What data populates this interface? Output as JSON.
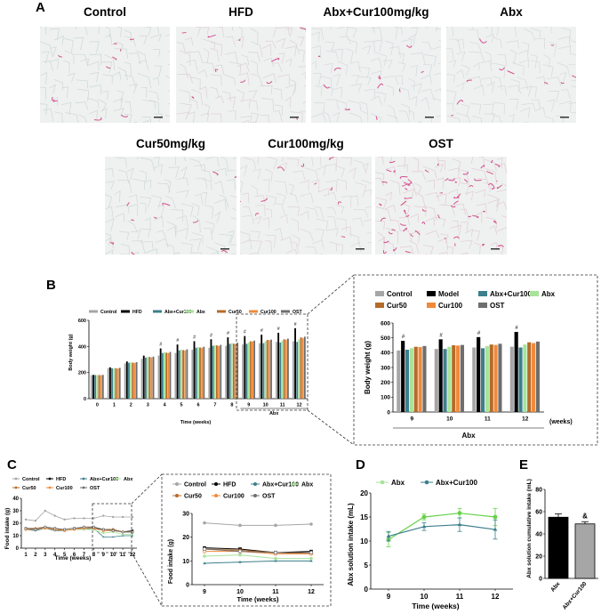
{
  "panels": {
    "A": "A",
    "B": "B",
    "C": "C",
    "D": "D",
    "E": "E"
  },
  "histology": [
    {
      "label": "Control",
      "tint": "#ccd8d6"
    },
    {
      "label": "HFD",
      "tint": "#ddd1d6"
    },
    {
      "label": "Abx+Cur100mg/kg",
      "tint": "#d4d9e0"
    },
    {
      "label": "Abx",
      "tint": "#d5dad8"
    },
    {
      "label": "Cur50mg/kg",
      "tint": "#cfd9d7"
    },
    {
      "label": "Cur100mg/kg",
      "tint": "#dfd4d9"
    },
    {
      "label": "OST",
      "tint": "#e3ccd6"
    }
  ],
  "colors": {
    "Control": "#a6a6a6",
    "HFD": "#000000",
    "Model": "#000000",
    "Abx+Cur100": "#3d7f8c",
    "Abx": "#a8e39a",
    "Cur50": "#b56b2a",
    "Cur100": "#f08a3a",
    "OST": "#6e6e6e",
    "Abx_line": "#66d24a"
  },
  "chart_data": [
    {
      "id": "B-main",
      "type": "bar",
      "xlabel": "Time (weeks)",
      "ylabel": "Body weight (g)",
      "ylim": [
        0,
        600
      ],
      "yticks": [
        "0",
        "200",
        "400",
        "600"
      ],
      "categories": [
        "0",
        "1",
        "2",
        "3",
        "4",
        "5",
        "6",
        "7",
        "8",
        "9",
        "10",
        "11",
        "12"
      ],
      "legend": [
        "Control",
        "HFD",
        "Abx+Cur100",
        "Abx",
        "Cur50",
        "Cur100",
        "OST"
      ],
      "bracket_label": "Abx",
      "series": [
        {
          "name": "Control",
          "values": [
            180,
            235,
            270,
            305,
            330,
            350,
            375,
            390,
            405,
            415,
            425,
            435,
            440
          ]
        },
        {
          "name": "HFD",
          "values": [
            182,
            240,
            285,
            330,
            385,
            415,
            440,
            455,
            470,
            480,
            490,
            505,
            540
          ]
        },
        {
          "name": "Abx+Cur100",
          "values": [
            181,
            232,
            275,
            315,
            350,
            370,
            390,
            405,
            420,
            420,
            425,
            430,
            435
          ]
        },
        {
          "name": "Abx",
          "values": [
            180,
            234,
            278,
            318,
            355,
            375,
            395,
            410,
            425,
            430,
            440,
            445,
            455
          ]
        },
        {
          "name": "Cur50",
          "values": [
            181,
            233,
            276,
            320,
            352,
            372,
            392,
            408,
            422,
            440,
            450,
            455,
            470
          ]
        },
        {
          "name": "Cur100",
          "values": [
            180,
            231,
            274,
            316,
            350,
            370,
            390,
            404,
            418,
            438,
            448,
            452,
            465
          ]
        },
        {
          "name": "OST",
          "values": [
            182,
            236,
            280,
            322,
            358,
            378,
            398,
            412,
            428,
            445,
            452,
            460,
            475
          ]
        }
      ]
    },
    {
      "id": "B-inset",
      "type": "bar",
      "xlabel": "(weeks)",
      "ylabel": "Body weight (g)",
      "ylim": [
        0,
        600
      ],
      "yticks": [
        "0",
        "100",
        "200",
        "300",
        "400",
        "500",
        "600"
      ],
      "categories": [
        "9",
        "10",
        "11",
        "12"
      ],
      "legend": [
        "Control",
        "Model",
        "Abx+Cur100",
        "Abx",
        "Cur50",
        "Cur100",
        "OST"
      ],
      "bracket_label": "Abx",
      "series": [
        {
          "name": "Control",
          "values": [
            415,
            425,
            435,
            440
          ]
        },
        {
          "name": "Model",
          "values": [
            480,
            490,
            505,
            540
          ]
        },
        {
          "name": "Abx+Cur100",
          "values": [
            420,
            425,
            430,
            435
          ]
        },
        {
          "name": "Abx",
          "values": [
            430,
            440,
            445,
            455
          ]
        },
        {
          "name": "Cur50",
          "values": [
            440,
            450,
            455,
            470
          ]
        },
        {
          "name": "Cur100",
          "values": [
            438,
            448,
            452,
            465
          ]
        },
        {
          "name": "OST",
          "values": [
            445,
            452,
            460,
            475
          ]
        }
      ]
    },
    {
      "id": "C-main",
      "type": "line",
      "xlabel": "Time (weeks)",
      "ylabel": "Food intake (g)",
      "ylim": [
        0,
        40
      ],
      "yticks": [
        "0",
        "10",
        "20",
        "30",
        "40"
      ],
      "x": [
        "1",
        "2",
        "3",
        "4",
        "5",
        "6",
        "7",
        "8",
        "9",
        "10",
        "11",
        "12"
      ],
      "legend": [
        "Control",
        "HFD",
        "Abx+Cur100",
        "Abx",
        "Cur50",
        "Cur100",
        "OST"
      ],
      "series": [
        {
          "name": "Control",
          "values": [
            23,
            22,
            30,
            26,
            23,
            24,
            24,
            24,
            26,
            25,
            25,
            25
          ]
        },
        {
          "name": "HFD",
          "values": [
            16,
            15,
            16,
            15,
            15,
            16,
            16,
            16,
            15,
            15,
            13,
            14
          ]
        },
        {
          "name": "Abx+Cur100",
          "values": [
            15,
            14,
            16,
            14,
            14,
            15,
            15,
            16,
            9,
            9,
            10,
            10
          ]
        },
        {
          "name": "Abx",
          "values": [
            15,
            15,
            16,
            15,
            14,
            15,
            15,
            15,
            12,
            13,
            11,
            11
          ]
        },
        {
          "name": "Cur50",
          "values": [
            16,
            16,
            17,
            15,
            15,
            16,
            16,
            17,
            15,
            15,
            13,
            13
          ]
        },
        {
          "name": "Cur100",
          "values": [
            15,
            15,
            16,
            15,
            14,
            15,
            16,
            16,
            14,
            14,
            13,
            13
          ]
        },
        {
          "name": "OST",
          "values": [
            16,
            15,
            17,
            16,
            15,
            16,
            17,
            17,
            15,
            14,
            13,
            13
          ]
        }
      ]
    },
    {
      "id": "C-inset",
      "type": "line",
      "xlabel": "Time (weeks)",
      "ylabel": "Food intake (g)",
      "ylim": [
        0,
        30
      ],
      "yticks": [
        "0",
        "10",
        "20",
        "30"
      ],
      "x": [
        "9",
        "10",
        "11",
        "12"
      ],
      "legend": [
        "Control",
        "HFD",
        "Abx+Cur100",
        "Abx",
        "Cur50",
        "Cur100",
        "OST"
      ],
      "series": [
        {
          "name": "Control",
          "values": [
            26,
            25,
            25,
            25.5
          ]
        },
        {
          "name": "HFD",
          "values": [
            15.5,
            15,
            13.5,
            14
          ]
        },
        {
          "name": "Abx+Cur100",
          "values": [
            9,
            9.5,
            10,
            10
          ]
        },
        {
          "name": "Abx",
          "values": [
            12,
            12.5,
            11,
            11
          ]
        },
        {
          "name": "Cur50",
          "values": [
            15,
            14.5,
            13.5,
            13
          ]
        },
        {
          "name": "Cur100",
          "values": [
            14,
            14,
            13,
            13
          ]
        },
        {
          "name": "OST",
          "values": [
            15,
            14,
            13.5,
            13.5
          ]
        }
      ]
    },
    {
      "id": "D",
      "type": "line",
      "xlabel": "Time (weeks)",
      "ylabel": "Abx solution intake (mL)",
      "ylim": [
        0,
        20
      ],
      "yticks": [
        "0",
        "5",
        "10",
        "15",
        "20"
      ],
      "x": [
        "9",
        "10",
        "11",
        "12"
      ],
      "legend": [
        "Abx",
        "Abx+Cur100"
      ],
      "series": [
        {
          "name": "Abx",
          "values": [
            10.3,
            15,
            15.8,
            15
          ],
          "err": [
            1.5,
            0.6,
            1,
            1.8
          ]
        },
        {
          "name": "Abx+Cur100",
          "values": [
            11,
            13,
            13.4,
            12.4
          ],
          "err": [
            1,
            0.8,
            1.4,
            2
          ]
        }
      ]
    },
    {
      "id": "E",
      "type": "bar",
      "ylabel": "Abx solution cumulative intake (mL)",
      "ylim": [
        0,
        80
      ],
      "yticks": [
        "0",
        "20",
        "40",
        "60",
        "80"
      ],
      "categories": [
        "Abx",
        "Abx+Cur100"
      ],
      "values": [
        55,
        49
      ],
      "err": [
        3,
        2
      ],
      "annotation": "&"
    }
  ]
}
